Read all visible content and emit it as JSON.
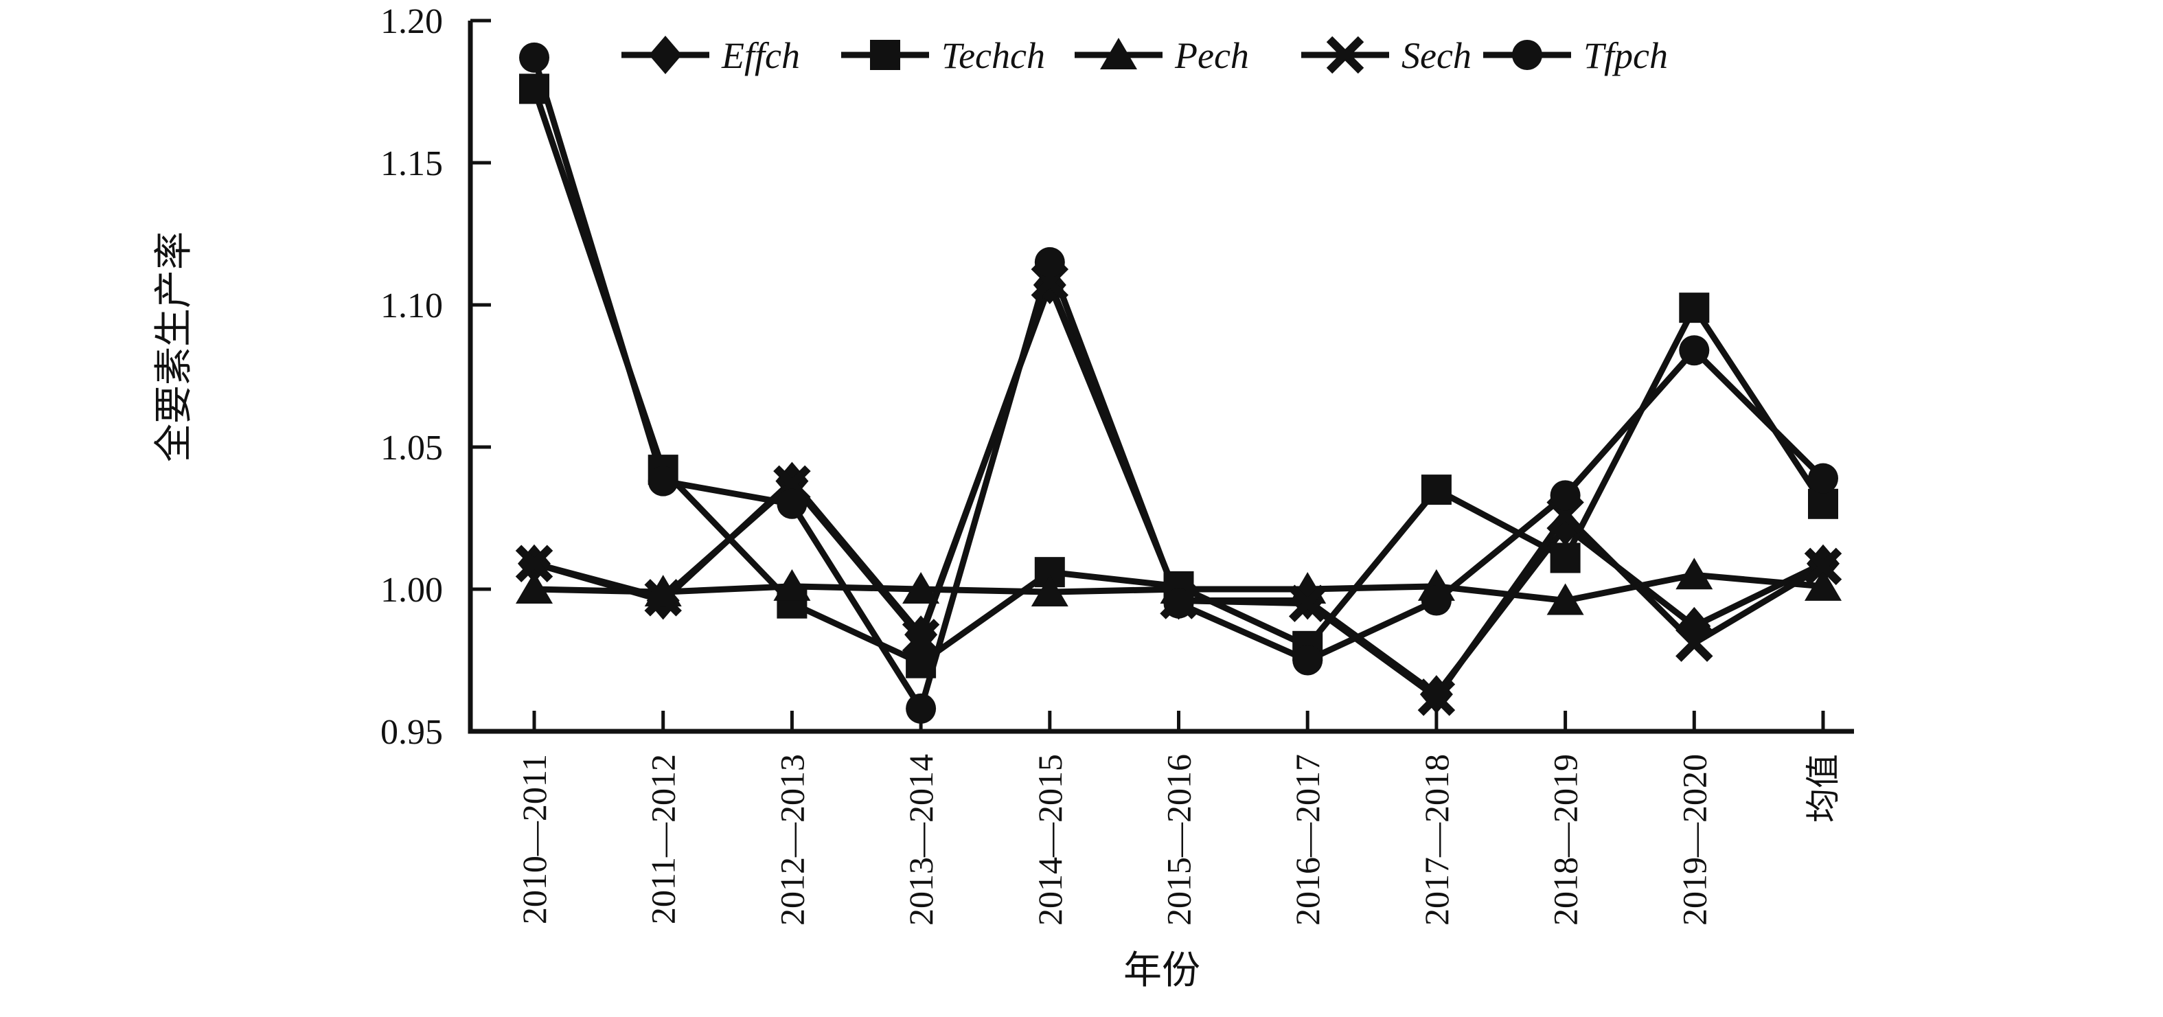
{
  "figure": {
    "background": "#ffffff",
    "ink_color": "#111111"
  },
  "chart_data": {
    "type": "line",
    "title": "",
    "xlabel": "年份",
    "ylabel": "全要素生产率",
    "ylim": [
      0.95,
      1.2
    ],
    "y_tick_labels": [
      "1.20",
      "1.15",
      "1.10",
      "1.05",
      "1.00",
      "0.95"
    ],
    "y_tick_values": [
      1.2,
      1.15,
      1.1,
      1.05,
      1.0,
      0.95
    ],
    "grid": false,
    "legend_position": "top",
    "categories": [
      "2010—2011",
      "2011—2012",
      "2012—2013",
      "2013—2014",
      "2014—2015",
      "2015—2016",
      "2016—2017",
      "2017—2018",
      "2018—2019",
      "2019—2020",
      "均值"
    ],
    "series": [
      {
        "name": "Effch",
        "marker": "diamond",
        "values": [
          1.009,
          0.996,
          1.038,
          0.984,
          1.107,
          0.996,
          0.996,
          0.963,
          1.022,
          0.987,
          1.009
        ]
      },
      {
        "name": "Techch",
        "marker": "square",
        "values": [
          1.176,
          1.042,
          0.995,
          0.974,
          1.006,
          1.001,
          0.98,
          1.035,
          1.011,
          1.099,
          1.03
        ]
      },
      {
        "name": "Pech",
        "marker": "triangle",
        "values": [
          1.0,
          0.999,
          1.001,
          1.0,
          0.999,
          1.0,
          1.0,
          1.001,
          0.996,
          1.005,
          1.001
        ]
      },
      {
        "name": "Sech",
        "marker": "x",
        "values": [
          1.009,
          0.997,
          1.037,
          0.983,
          1.108,
          0.996,
          0.995,
          0.962,
          1.026,
          0.981,
          1.008
        ]
      },
      {
        "name": "Tfpch",
        "marker": "circle",
        "values": [
          1.187,
          1.038,
          1.03,
          0.958,
          1.115,
          0.995,
          0.975,
          0.996,
          1.033,
          1.084,
          1.039
        ]
      }
    ]
  }
}
